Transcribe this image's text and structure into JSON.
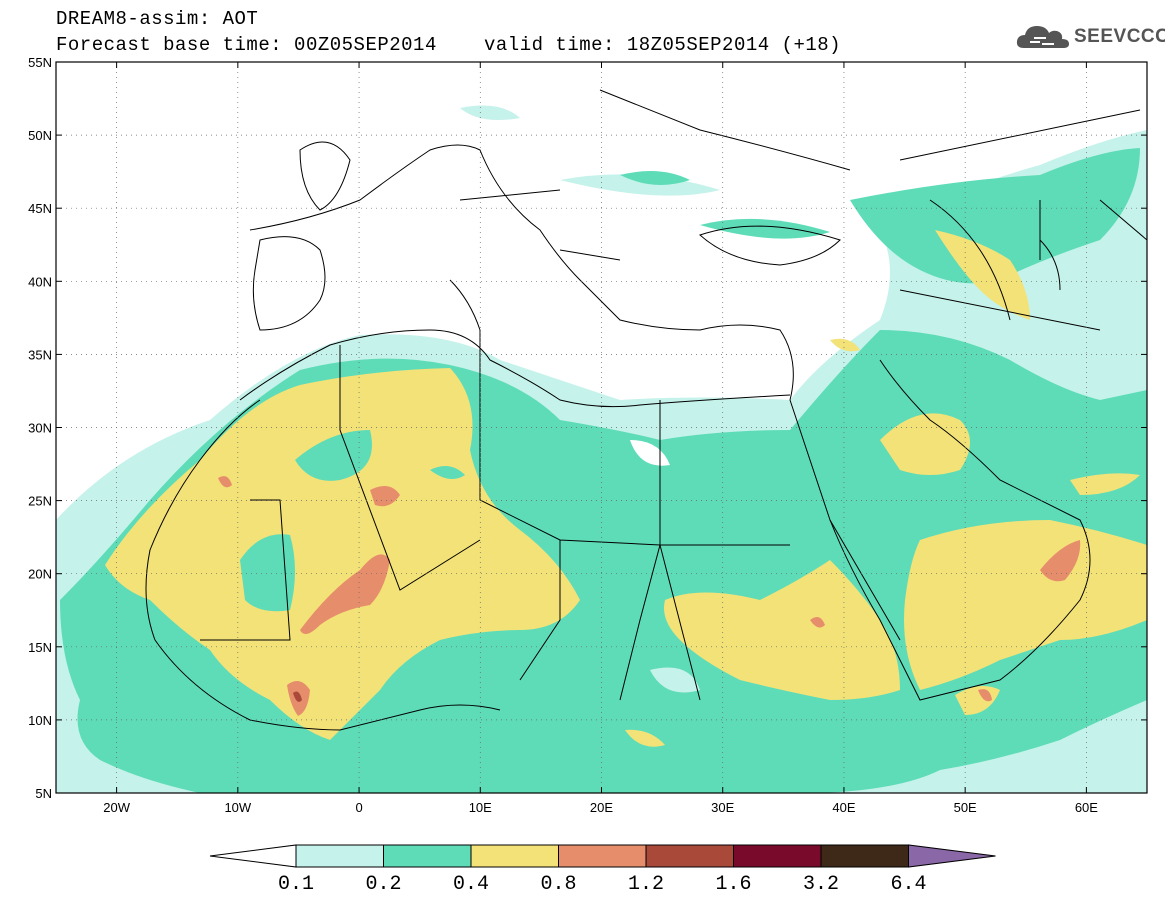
{
  "header": {
    "title_line1": "DREAM8-assim: AOT",
    "base_time": "Forecast base time: 00Z05SEP2014",
    "valid_time": "valid time: 18Z05SEP2014 (+18)"
  },
  "logo": {
    "text": "SEEVCCC",
    "icon": "cloud-logo-icon"
  },
  "map": {
    "lat_labels": [
      "55N",
      "50N",
      "45N",
      "40N",
      "35N",
      "30N",
      "25N",
      "20N",
      "15N",
      "10N",
      "5N"
    ],
    "lon_labels": [
      "20W",
      "10W",
      "0",
      "10E",
      "20E",
      "30E",
      "40E",
      "50E",
      "60E"
    ],
    "lat_range": [
      5,
      55
    ],
    "lon_range": [
      -25,
      65
    ],
    "grid": "dotted"
  },
  "colorbar": {
    "labels": [
      "0.1",
      "0.2",
      "0.4",
      "0.8",
      "1.2",
      "1.6",
      "3.2",
      "6.4"
    ],
    "colors": [
      "#c5f2ea",
      "#5edcb8",
      "#f3e277",
      "#e68e6c",
      "#a9493a",
      "#7a0a2c",
      "#3e2817",
      "#8a67a6"
    ],
    "under_color": "#ffffff"
  }
}
